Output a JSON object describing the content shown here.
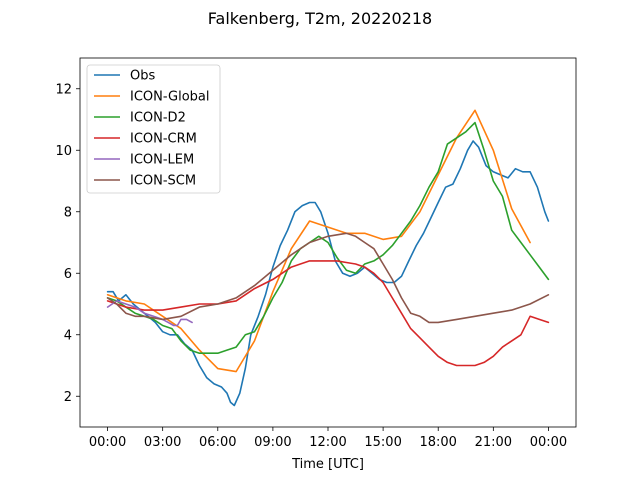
{
  "chart_data": {
    "type": "line",
    "title": "Falkenberg, T2m, 20220218",
    "xlabel": "Time [UTC]",
    "ylabel": "",
    "xlim": [
      -1.5,
      25.5
    ],
    "ylim": [
      1.0,
      13.0
    ],
    "xticks": [
      0,
      3,
      6,
      9,
      12,
      15,
      18,
      21,
      24
    ],
    "xtick_labels": [
      "00:00",
      "03:00",
      "06:00",
      "09:00",
      "12:00",
      "15:00",
      "18:00",
      "21:00",
      "00:00"
    ],
    "yticks": [
      2,
      4,
      6,
      8,
      10,
      12
    ],
    "ytick_labels": [
      "2",
      "4",
      "6",
      "8",
      "10",
      "12"
    ],
    "grid": false,
    "legend_position": "upper-left",
    "series": [
      {
        "name": "Obs",
        "color": "#1f77b4",
        "x": [
          0,
          0.3,
          0.6,
          1.0,
          1.4,
          1.8,
          2.2,
          2.6,
          3.0,
          3.4,
          3.8,
          4.2,
          4.6,
          5.0,
          5.4,
          5.8,
          6.2,
          6.5,
          6.7,
          6.9,
          7.2,
          7.5,
          7.8,
          8.2,
          8.6,
          9.0,
          9.4,
          9.8,
          10.2,
          10.6,
          11.0,
          11.3,
          11.6,
          12.0,
          12.4,
          12.8,
          13.2,
          13.6,
          14.0,
          14.4,
          14.8,
          15.2,
          15.6,
          16.0,
          16.4,
          16.8,
          17.2,
          17.6,
          18.0,
          18.4,
          18.8,
          19.2,
          19.6,
          19.9,
          20.2,
          20.6,
          21.0,
          21.4,
          21.8,
          22.2,
          22.6,
          23.0,
          23.4,
          23.8,
          24.0
        ],
        "y": [
          5.4,
          5.4,
          5.1,
          5.3,
          5.0,
          4.8,
          4.6,
          4.4,
          4.1,
          4.0,
          4.0,
          3.7,
          3.5,
          3.0,
          2.6,
          2.4,
          2.3,
          2.1,
          1.8,
          1.7,
          2.1,
          2.9,
          4.0,
          4.6,
          5.3,
          6.2,
          6.9,
          7.4,
          8.0,
          8.2,
          8.3,
          8.3,
          8.0,
          7.3,
          6.4,
          6.0,
          5.9,
          6.0,
          6.2,
          6.0,
          5.8,
          5.7,
          5.7,
          5.9,
          6.4,
          6.9,
          7.3,
          7.8,
          8.3,
          8.8,
          8.9,
          9.4,
          10.0,
          10.3,
          10.1,
          9.5,
          9.3,
          9.2,
          9.1,
          9.4,
          9.3,
          9.3,
          8.8,
          8.0,
          7.7
        ]
      },
      {
        "name": "ICON-Global",
        "color": "#ff7f0e",
        "x": [
          0,
          1,
          2,
          3,
          4,
          5,
          6,
          7,
          8,
          9,
          10,
          11,
          12,
          13,
          14,
          15,
          16,
          17,
          18,
          19,
          20,
          21,
          22,
          23
        ],
        "y": [
          5.3,
          5.1,
          5.0,
          4.6,
          4.2,
          3.5,
          2.9,
          2.8,
          3.8,
          5.4,
          6.8,
          7.7,
          7.5,
          7.3,
          7.3,
          7.1,
          7.2,
          8.0,
          9.2,
          10.4,
          11.3,
          10.0,
          8.1,
          7.0
        ]
      },
      {
        "name": "ICON-D2",
        "color": "#2ca02c",
        "x": [
          0,
          0.5,
          1.0,
          1.5,
          2.0,
          2.5,
          3.0,
          3.5,
          4.0,
          4.5,
          5.0,
          5.5,
          6.0,
          6.5,
          7.0,
          7.5,
          8.0,
          8.5,
          9.0,
          9.5,
          10.0,
          10.5,
          11.0,
          11.5,
          12.0,
          12.5,
          13.0,
          13.5,
          14.0,
          14.5,
          15.0,
          15.5,
          16.0,
          16.5,
          17.0,
          17.5,
          18.0,
          18.5,
          19.0,
          19.5,
          20.0,
          20.5,
          21.0,
          21.5,
          22.0,
          22.5,
          23.0,
          23.5,
          24.0
        ],
        "y": [
          5.2,
          5.1,
          4.9,
          4.7,
          4.6,
          4.5,
          4.3,
          4.2,
          3.8,
          3.5,
          3.4,
          3.4,
          3.4,
          3.5,
          3.6,
          4.0,
          4.1,
          4.6,
          5.2,
          5.7,
          6.4,
          6.8,
          7.0,
          7.2,
          7.0,
          6.5,
          6.1,
          6.0,
          6.3,
          6.4,
          6.6,
          6.9,
          7.3,
          7.7,
          8.2,
          8.8,
          9.3,
          10.2,
          10.4,
          10.6,
          10.9,
          10.0,
          9.0,
          8.5,
          7.4,
          7.0,
          6.6,
          6.2,
          5.8
        ]
      },
      {
        "name": "ICON-CRM",
        "color": "#d62728",
        "x": [
          0,
          1,
          2,
          3,
          4,
          5,
          6,
          7,
          8,
          9,
          10,
          10.5,
          11,
          11.5,
          12,
          12.5,
          13,
          13.5,
          14,
          14.5,
          15,
          15.5,
          16,
          16.5,
          17,
          17.5,
          18,
          18.5,
          19,
          19.5,
          20,
          20.5,
          21,
          21.5,
          22,
          22.5,
          23,
          23.5,
          24
        ],
        "y": [
          5.1,
          4.9,
          4.8,
          4.8,
          4.9,
          5.0,
          5.0,
          5.1,
          5.5,
          5.8,
          6.2,
          6.3,
          6.4,
          6.4,
          6.4,
          6.4,
          6.35,
          6.3,
          6.2,
          6.0,
          5.7,
          5.2,
          4.7,
          4.2,
          3.9,
          3.6,
          3.3,
          3.1,
          3.0,
          3.0,
          3.0,
          3.1,
          3.3,
          3.6,
          3.8,
          4.0,
          4.6,
          4.5,
          4.4
        ]
      },
      {
        "name": "ICON-LEM",
        "color": "#9467bd",
        "x": [
          0,
          0.5,
          1.0,
          1.5,
          2.0,
          2.5,
          3.0,
          3.3,
          3.6,
          3.8,
          4.0,
          4.3,
          4.6
        ],
        "y": [
          4.9,
          5.1,
          5.0,
          4.9,
          4.7,
          4.6,
          4.5,
          4.4,
          4.3,
          4.3,
          4.5,
          4.5,
          4.4
        ]
      },
      {
        "name": "ICON-SCM",
        "color": "#8c564b",
        "x": [
          0,
          0.5,
          1.0,
          1.5,
          2.0,
          3.0,
          4.0,
          5.0,
          6.0,
          7.0,
          8.0,
          9.0,
          10.0,
          11.0,
          12.0,
          13.0,
          13.5,
          14.0,
          14.5,
          15.0,
          15.5,
          16.0,
          16.5,
          17.0,
          17.5,
          18.0,
          19.0,
          20.0,
          21.0,
          22.0,
          23.0,
          24.0
        ],
        "y": [
          5.2,
          5.0,
          4.7,
          4.6,
          4.6,
          4.5,
          4.6,
          4.9,
          5.0,
          5.2,
          5.6,
          6.1,
          6.6,
          7.0,
          7.2,
          7.3,
          7.2,
          7.0,
          6.8,
          6.3,
          5.8,
          5.2,
          4.7,
          4.6,
          4.4,
          4.4,
          4.5,
          4.6,
          4.7,
          4.8,
          5.0,
          5.3
        ]
      }
    ]
  }
}
